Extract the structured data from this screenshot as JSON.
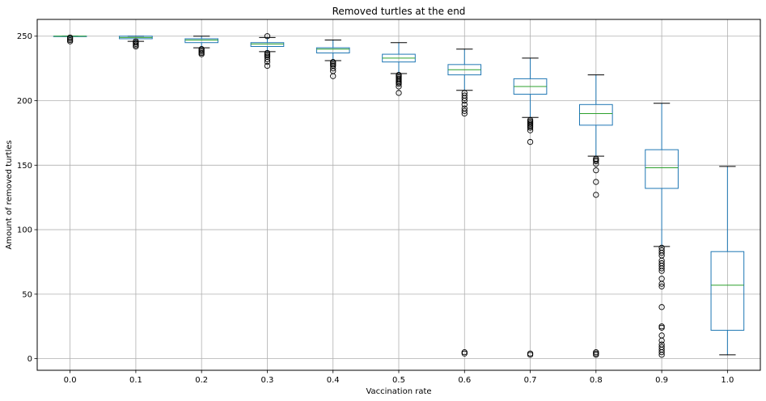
{
  "chart_data": {
    "type": "boxplot",
    "title": "Removed turtles at the end",
    "xlabel": "Vaccination rate",
    "ylabel": "Amount of removed turtles",
    "ylim": [
      -9,
      263
    ],
    "yticks": [
      0,
      50,
      100,
      150,
      200,
      250
    ],
    "grid": true,
    "colors": {
      "box": "#1f77b4",
      "median": "#2ca02c",
      "whisker": "#000000",
      "cap": "#000000",
      "grid": "#b0b0b0",
      "flier": "#000000"
    },
    "categories": [
      "0.0",
      "0.1",
      "0.2",
      "0.3",
      "0.4",
      "0.5",
      "0.6",
      "0.7",
      "0.8",
      "0.9",
      "1.0"
    ],
    "boxes": [
      {
        "label": "0.0",
        "whislo": 250,
        "q1": 250,
        "med": 250,
        "q3": 250,
        "whishi": 250,
        "fliers": [
          246,
          247,
          248,
          249
        ]
      },
      {
        "label": "0.1",
        "whislo": 246,
        "q1": 248,
        "med": 249,
        "q3": 250,
        "whishi": 250,
        "fliers": [
          242,
          243,
          244,
          245,
          246
        ]
      },
      {
        "label": "0.2",
        "whislo": 241,
        "q1": 245,
        "med": 247,
        "q3": 248,
        "whishi": 250,
        "fliers": [
          236,
          237,
          238,
          239,
          240
        ]
      },
      {
        "label": "0.3",
        "whislo": 238,
        "q1": 242,
        "med": 244,
        "q3": 245,
        "whishi": 249,
        "fliers": [
          227,
          230,
          232,
          234,
          235,
          236,
          237,
          250
        ]
      },
      {
        "label": "0.4",
        "whislo": 231,
        "q1": 237,
        "med": 240,
        "q3": 241,
        "whishi": 247,
        "fliers": [
          219,
          223,
          225,
          227,
          228,
          229,
          230
        ]
      },
      {
        "label": "0.5",
        "whislo": 221,
        "q1": 230,
        "med": 233,
        "q3": 236,
        "whishi": 245,
        "fliers": [
          206,
          211,
          213,
          214,
          215,
          216,
          217,
          218,
          219,
          220
        ]
      },
      {
        "label": "0.6",
        "whislo": 208,
        "q1": 220,
        "med": 224,
        "q3": 228,
        "whishi": 240,
        "fliers": [
          4,
          5,
          190,
          192,
          194,
          197,
          200,
          202,
          204,
          206
        ]
      },
      {
        "label": "0.7",
        "whislo": 187,
        "q1": 205,
        "med": 211,
        "q3": 217,
        "whishi": 233,
        "fliers": [
          3,
          4,
          168,
          177,
          179,
          180,
          181,
          182,
          183,
          184,
          185
        ]
      },
      {
        "label": "0.8",
        "whislo": 157,
        "q1": 181,
        "med": 190,
        "q3": 197,
        "whishi": 220,
        "fliers": [
          3,
          4,
          5,
          127,
          137,
          146,
          151,
          153,
          154,
          155
        ]
      },
      {
        "label": "0.9",
        "whislo": 87,
        "q1": 132,
        "med": 148,
        "q3": 162,
        "whishi": 198,
        "fliers": [
          3,
          5,
          7,
          9,
          11,
          14,
          18,
          24,
          25,
          40,
          56,
          58,
          62,
          68,
          70,
          72,
          74,
          76,
          80,
          82,
          84,
          86
        ]
      },
      {
        "label": "1.0",
        "whislo": 3,
        "q1": 22,
        "med": 57,
        "q3": 83,
        "whishi": 149,
        "fliers": []
      }
    ]
  }
}
